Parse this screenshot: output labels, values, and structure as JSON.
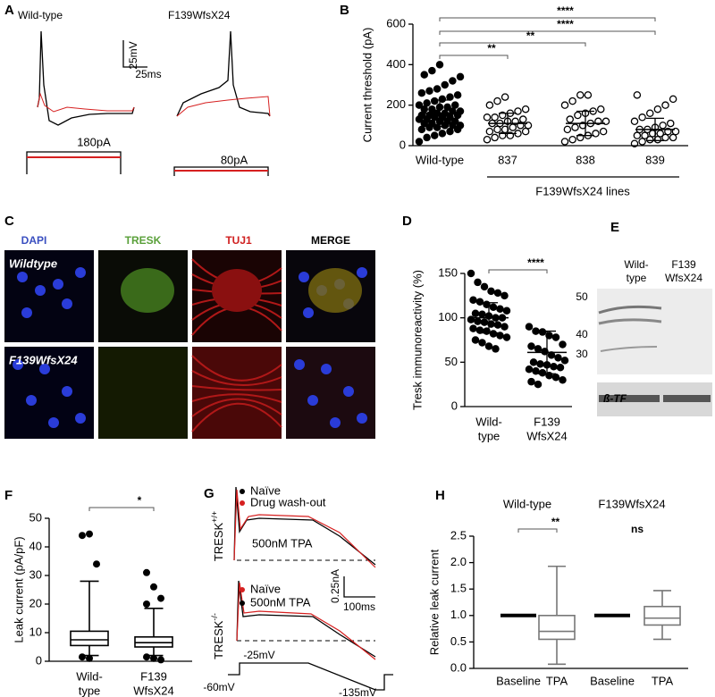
{
  "figure": {
    "panel_labels": [
      "A",
      "B",
      "C",
      "D",
      "E",
      "F",
      "G",
      "H"
    ],
    "a": {
      "wild_type": "Wild-type",
      "mutant": "F139WfsX24",
      "scale_v": "25mV",
      "scale_t": "25ms",
      "step_wt": "180pA",
      "step_mut": "80pA"
    },
    "c": {
      "columns": [
        "DAPI",
        "TRESK",
        "TUJ1",
        "MERGE"
      ],
      "rows": [
        "Wildtype",
        "F139WfsX24"
      ]
    },
    "e": {
      "lanes": [
        [
          "Wild-",
          "type"
        ],
        [
          "F139",
          "WfsX24"
        ]
      ],
      "markers": [
        "50",
        "40",
        "30"
      ],
      "loading": "ß-TF"
    },
    "g": {
      "legend_top": [
        "Naïve",
        "Drug wash-out"
      ],
      "drug_top": "500nM TPA",
      "legend_bottom": [
        "Naïve",
        "500nM TPA"
      ],
      "genotypes": [
        {
          "name": "TRESK",
          "sup": "+/+"
        },
        {
          "name": "TRESK",
          "sup": "-/-"
        }
      ],
      "scale_i": "0.25nA",
      "scale_t": "100ms",
      "v_step": "-25mV",
      "v_hold": "-60mV",
      "v_end": "-135mV"
    }
  },
  "chart_data": [
    {
      "type": "strip",
      "ylabel": "Current threshold (pA)",
      "categories": [
        "Wild-type",
        "837",
        "838",
        "839"
      ],
      "group_label": "F139WfsX24 lines",
      "values": [
        [
          20,
          40,
          50,
          60,
          70,
          80,
          80,
          90,
          90,
          100,
          100,
          100,
          110,
          110,
          120,
          120,
          120,
          130,
          130,
          140,
          140,
          140,
          150,
          150,
          150,
          160,
          160,
          170,
          170,
          180,
          180,
          190,
          190,
          200,
          200,
          210,
          220,
          230,
          240,
          250,
          260,
          270,
          280,
          300,
          320,
          340,
          350,
          370,
          400
        ],
        [
          30,
          40,
          50,
          50,
          60,
          70,
          70,
          80,
          80,
          90,
          100,
          100,
          110,
          110,
          120,
          120,
          130,
          140,
          140,
          150,
          160,
          170,
          180,
          200,
          220,
          240
        ],
        [
          20,
          30,
          40,
          50,
          60,
          70,
          80,
          90,
          100,
          110,
          120,
          120,
          130,
          150,
          160,
          170,
          180,
          200,
          220,
          250,
          250
        ],
        [
          10,
          20,
          30,
          30,
          40,
          40,
          50,
          50,
          60,
          60,
          70,
          70,
          80,
          80,
          90,
          100,
          110,
          120,
          140,
          160,
          180,
          200,
          230,
          250
        ]
      ],
      "means": [
        160,
        110,
        110,
        80
      ],
      "sd": [
        65,
        50,
        60,
        55
      ],
      "marker_fill": [
        "#000000",
        "none",
        "none",
        "none"
      ],
      "significance": [
        "**",
        "**",
        "****",
        "****"
      ],
      "ylim": [
        0,
        600
      ],
      "yticks": [
        0,
        200,
        400,
        600
      ]
    },
    {
      "type": "strip",
      "ylabel": "Tresk immunoreactivity (%)",
      "categories": [
        [
          "Wild-",
          "type"
        ],
        [
          "F139",
          "WfsX24"
        ]
      ],
      "values": [
        [
          150,
          140,
          135,
          130,
          128,
          125,
          120,
          118,
          115,
          112,
          110,
          108,
          105,
          104,
          102,
          100,
          100,
          98,
          96,
          95,
          93,
          92,
          90,
          88,
          86,
          85,
          82,
          80,
          78,
          75,
          72,
          68,
          65
        ],
        [
          90,
          85,
          84,
          80,
          78,
          70,
          68,
          65,
          62,
          58,
          55,
          52,
          50,
          48,
          47,
          45,
          44,
          42,
          40,
          38,
          35,
          33,
          30,
          28,
          25
        ]
      ],
      "means": [
        100,
        61
      ],
      "sd": [
        17,
        24
      ],
      "marker_fill": [
        "#000000",
        "#000000"
      ],
      "significance": [
        "****"
      ],
      "ylim": [
        0,
        150
      ],
      "yticks": [
        0,
        50,
        100,
        150
      ]
    },
    {
      "type": "box",
      "ylabel": "Leak current  (pA/pF)",
      "categories": [
        [
          "Wild-",
          "type"
        ],
        [
          "F139",
          "WfsX24"
        ]
      ],
      "boxes": [
        {
          "min": 2,
          "q1": 5.5,
          "median": 7.5,
          "q3": 10.5,
          "max": 28,
          "outliers": [
            44,
            44.5,
            34,
            1.5,
            1
          ]
        },
        {
          "min": 2,
          "q1": 5,
          "median": 6.5,
          "q3": 8.5,
          "max": 18.5,
          "outliers": [
            31,
            26,
            22,
            20,
            1,
            0.5,
            1.5
          ]
        }
      ],
      "color": "#000000",
      "significance": [
        "*"
      ],
      "ylim": [
        0,
        50
      ],
      "yticks": [
        0,
        10,
        20,
        30,
        40,
        50
      ]
    },
    {
      "type": "box",
      "ylabel": "Relative leak current",
      "categories": [
        "Baseline",
        "TPA",
        "Baseline",
        "TPA"
      ],
      "groups": [
        "Wild-type",
        "F139WfsX24"
      ],
      "boxes": [
        {
          "min": 1,
          "q1": 1,
          "median": 1,
          "q3": 1,
          "max": 1,
          "outliers": []
        },
        {
          "min": 0.08,
          "q1": 0.55,
          "median": 0.7,
          "q3": 1.0,
          "max": 1.93,
          "outliers": []
        },
        {
          "min": 1,
          "q1": 1,
          "median": 1,
          "q3": 1,
          "max": 1,
          "outliers": []
        },
        {
          "min": 0.55,
          "q1": 0.82,
          "median": 0.95,
          "q3": 1.17,
          "max": 1.47,
          "outliers": []
        }
      ],
      "color": "#777777",
      "significance": [
        "**",
        "ns"
      ],
      "ylim": [
        0,
        2.5
      ],
      "yticks": [
        {
          "value": 0,
          "label": "0.0"
        },
        0.5,
        {
          "value": 1,
          "label": "1.0"
        },
        1.5,
        {
          "value": 2,
          "label": "2.0"
        },
        2.5
      ]
    }
  ]
}
